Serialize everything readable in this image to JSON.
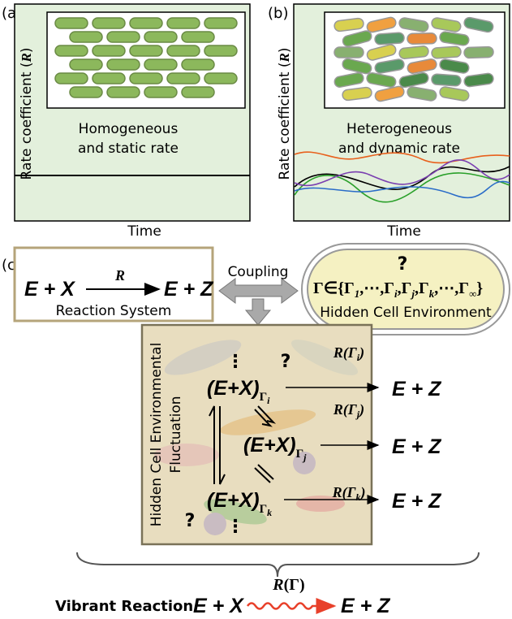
{
  "panel_a": {
    "label": "(a)",
    "caption": [
      "Homogeneous",
      "and static rate"
    ],
    "y_label": [
      "Rate coefficient (",
      "R",
      ")"
    ],
    "x_label": "Time"
  },
  "panel_b": {
    "label": "(b)",
    "caption": [
      "Heterogeneous",
      "and dynamic rate"
    ],
    "y_label": [
      "Rate coefficient (",
      "R",
      ")"
    ],
    "x_label": "Time"
  },
  "panel_c": {
    "label": "(c)",
    "reaction_system": {
      "reactants": "E + X",
      "rate": "R",
      "products": "E + Z",
      "caption": "Reaction System"
    },
    "coupling": "Coupling",
    "environment": {
      "question": "?",
      "set": [
        "Γ∈{Γ",
        "1",
        ",⋯,Γ",
        "i",
        ",Γ",
        "j",
        ",Γ",
        "k",
        ",⋯,Γ",
        "∞",
        "}"
      ],
      "caption": "Hidden Cell Environment"
    },
    "fluctuation": {
      "caption": [
        "Hidden Cell Environmental",
        "Fluctuation"
      ],
      "states": [
        {
          "complex": "(E+X)",
          "env": "Γ",
          "index": "i",
          "rate": [
            "R(Γ",
            "i",
            ")"
          ],
          "products": "E + Z"
        },
        {
          "complex": "(E+X)",
          "env": "Γ",
          "index": "j",
          "rate": [
            "R(Γ",
            "j",
            ")"
          ],
          "products": "E + Z"
        },
        {
          "complex": "(E+X)",
          "env": "Γ",
          "index": "k",
          "rate": [
            "R(Γ",
            "k",
            ")"
          ],
          "products": "E + Z"
        }
      ],
      "ellipsis": [
        "⋮",
        "⋮"
      ],
      "questions": [
        "?",
        "?"
      ]
    },
    "vibrant": {
      "label": "Vibrant Reaction",
      "reactants": "E + X",
      "rate": [
        "R",
        "(Γ)"
      ],
      "products": "E + Z"
    }
  }
}
